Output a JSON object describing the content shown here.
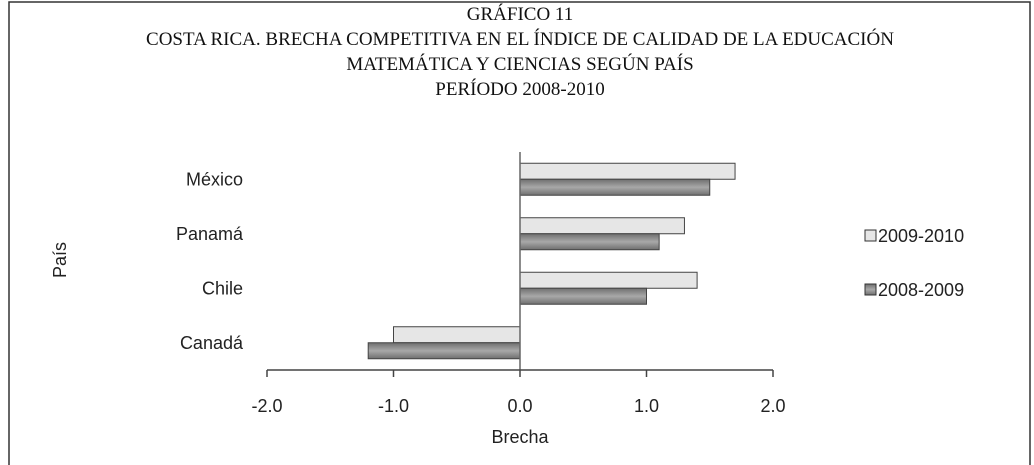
{
  "chart_data": {
    "type": "hbar",
    "title": "GRÁFICO 11",
    "subtitle": [
      "COSTA RICA. BRECHA COMPETITIVA EN EL ÍNDICE DE CALIDAD DE LA EDUCACIÓN",
      "MATEMÁTICA Y CIENCIAS SEGÚN PAÍS",
      "PERÍODO 2008-2010"
    ],
    "x_label": "Brecha",
    "y_label": "País",
    "categories": [
      "México",
      "Panamá",
      "Chile",
      "Canadá"
    ],
    "series": [
      {
        "name": "2009-2010",
        "color": "#e6e6e6",
        "values": [
          1.7,
          1.3,
          1.4,
          -1.0
        ]
      },
      {
        "name": "2008-2009",
        "color": "#8f8f8f",
        "values": [
          1.5,
          1.1,
          1.0,
          -1.2
        ]
      }
    ],
    "xlim": [
      -2,
      2
    ],
    "xticks": [
      {
        "value": -2,
        "label": "-2.0"
      },
      {
        "value": -1,
        "label": "-1.0"
      },
      {
        "value": 0,
        "label": "0.0"
      },
      {
        "value": 1,
        "label": "1.0"
      },
      {
        "value": 2,
        "label": "2.0"
      }
    ],
    "legend": "right"
  }
}
